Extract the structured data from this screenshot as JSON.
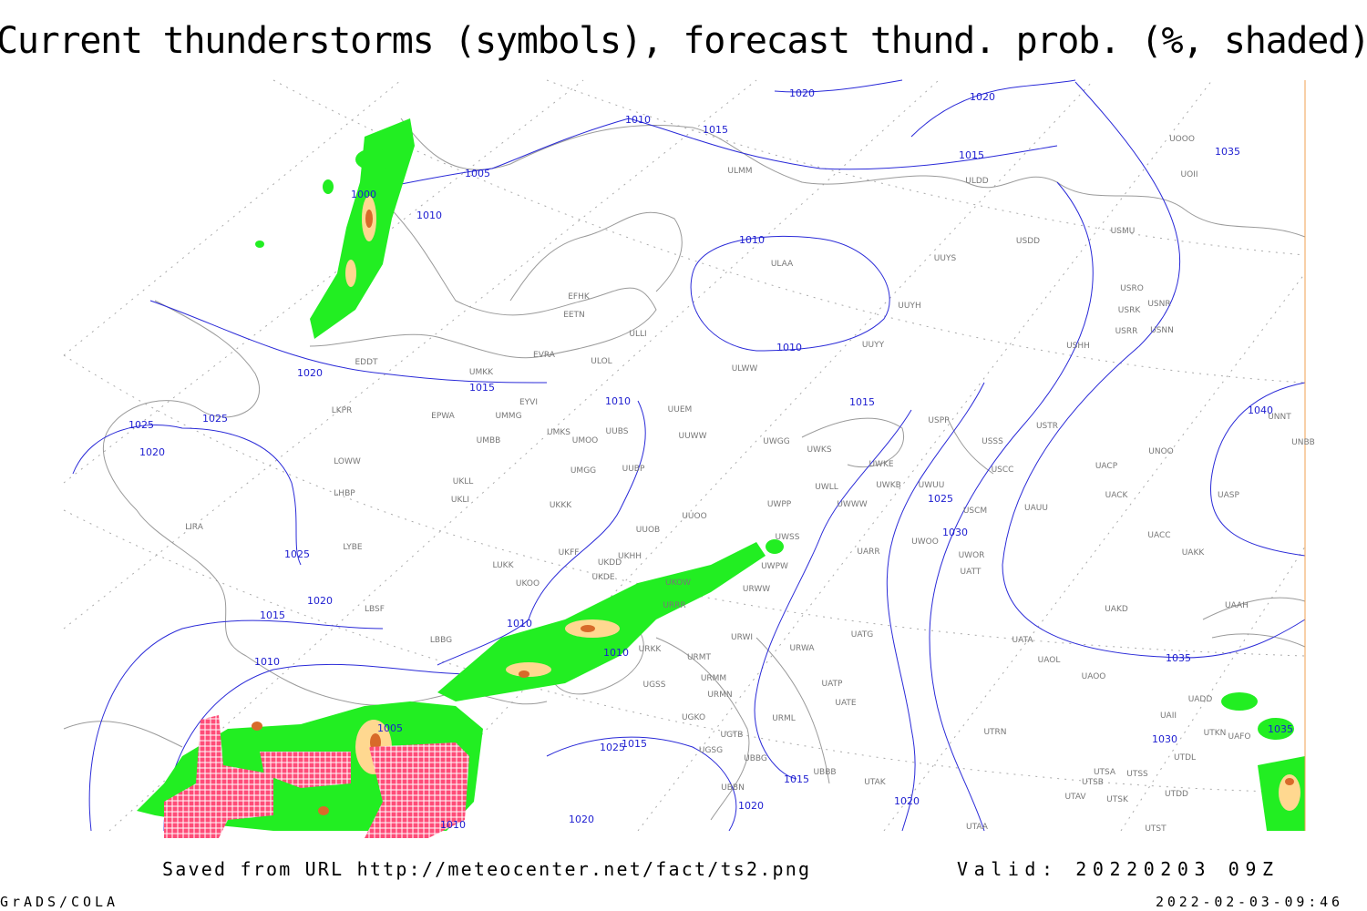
{
  "title": "Current thunderstorms (symbols), forecast thund. prob. (%, shaded)",
  "footer": {
    "source": "Saved from URL http://meteocenter.net/fact/ts2.png",
    "valid": "Valid: 20220203 09Z"
  },
  "credit": "GrADS/COLA",
  "timestamp": "2022-02-03-09:46",
  "isobar_labels": [
    "1020",
    "1020",
    "1010",
    "1015",
    "1005",
    "1015",
    "1000",
    "1010",
    "1010",
    "1010",
    "1020",
    "1015",
    "1010",
    "1015",
    "1025",
    "1025",
    "1020",
    "1025",
    "1030",
    "1025",
    "1020",
    "1015",
    "1010",
    "1010",
    "1010",
    "1035",
    "1040",
    "1035",
    "1005",
    "1030",
    "1035",
    "1015",
    "1025",
    "1015",
    "1020",
    "1020",
    "1020",
    "1010"
  ],
  "station_labels": [
    "ULMM",
    "ULDD",
    "UOOO",
    "UOII",
    "USDD",
    "USMU",
    "ULAA",
    "UUYS",
    "USRO",
    "USRK",
    "USNR",
    "UUYH",
    "USRR",
    "USNN",
    "EFHK",
    "EETN",
    "ULLI",
    "UUYY",
    "USHH",
    "ULWW",
    "EVRA",
    "ULOL",
    "EDDT",
    "UMKK",
    "EYVI",
    "UUEM",
    "EPWA",
    "LKPR",
    "UMMG",
    "USTR",
    "USPP",
    "UNNT",
    "UNBB",
    "UMKS",
    "UUBS",
    "UUWW",
    "UWGG",
    "UWKS",
    "USSS",
    "UNOO",
    "UMOO",
    "UMBB",
    "LOWW",
    "UWKE",
    "UUBP",
    "USCC",
    "UACP",
    "UMGG",
    "UKLL",
    "UWKB",
    "UWUU",
    "UWLL",
    "UACK",
    "UASP",
    "LHBP",
    "UKLI",
    "UKKK",
    "UWPP",
    "UWWW",
    "UAUU",
    "USCM",
    "UUOO",
    "LIRA",
    "UUOB",
    "UWSS",
    "UACC",
    "LYBE",
    "UWOO",
    "UKHH",
    "UWOR",
    "UAKK",
    "UARR",
    "UKFF",
    "UKDD",
    "LUKK",
    "UWPW",
    "UATT",
    "UKDE",
    "UKOO",
    "UKOW",
    "URWW",
    "UAAH",
    "URRR",
    "LBSF",
    "UAKD",
    "LBBG",
    "UATG",
    "URWI",
    "UATA",
    "URWA",
    "URKK",
    "URMT",
    "UAOL",
    "UAOO",
    "URMM",
    "UATP",
    "UGSS",
    "URMN",
    "UATE",
    "UADD",
    "UAII",
    "UGKO",
    "URML",
    "UTKN",
    "UGTB",
    "UTRN",
    "UAFO",
    "UGSG",
    "UBBG",
    "UTDL",
    "UBBB",
    "UTSA",
    "UTSS",
    "UTAK",
    "UTSB",
    "UBBN",
    "UTDD",
    "UTAV",
    "UTSK",
    "UTAA",
    "UTST"
  ]
}
